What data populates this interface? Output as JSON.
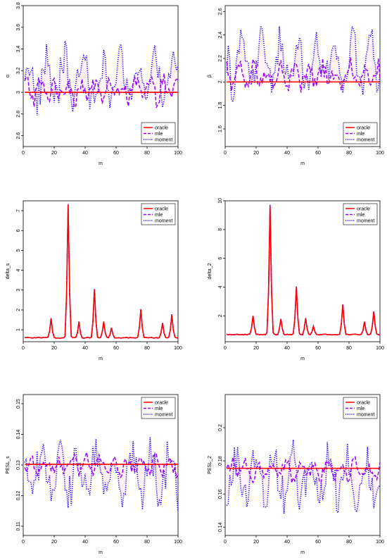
{
  "legend_labels": [
    "oracle",
    "mle",
    "moment"
  ],
  "colors": {
    "oracle": "#ff0000",
    "mle": "#9b00ff",
    "moment": "#2200ff",
    "band": "#ffd9ee"
  },
  "chart_data": [
    {
      "type": "line",
      "xlabel": "m",
      "ylabel": "α",
      "xlim": [
        0,
        100
      ],
      "ylim": [
        2.5,
        3.8
      ],
      "xticks": [
        0,
        20,
        40,
        60,
        80,
        100
      ],
      "yticks": [
        2.6,
        2.8,
        3.0,
        3.2,
        3.4,
        3.6,
        3.8
      ],
      "oracle": 3.0,
      "mle_center": 3.02,
      "mle_amp": 0.15,
      "mom_center": 3.12,
      "mom_amp": 0.3,
      "legend_position": "bottom-right"
    },
    {
      "type": "line",
      "xlabel": "m",
      "ylabel": "β",
      "xlim": [
        0,
        100
      ],
      "ylim": [
        1.45,
        2.65
      ],
      "xticks": [
        0,
        20,
        40,
        60,
        80,
        100
      ],
      "yticks": [
        1.6,
        1.8,
        2.0,
        2.2,
        2.4,
        2.6
      ],
      "oracle": 2.0,
      "mle_center": 2.05,
      "mle_amp": 0.15,
      "mom_center": 2.15,
      "mom_amp": 0.28,
      "legend_position": "bottom-right"
    },
    {
      "type": "line",
      "xlabel": "m",
      "ylabel": "delta_s",
      "xlim": [
        0,
        100
      ],
      "ylim": [
        0.4,
        7.5
      ],
      "xticks": [
        0,
        20,
        40,
        60,
        80,
        100
      ],
      "yticks": [
        1,
        2,
        3,
        4,
        5,
        6,
        7
      ],
      "base": 0.6,
      "spikes": [
        [
          18,
          1.55
        ],
        [
          29,
          7.3
        ],
        [
          36,
          1.4
        ],
        [
          46,
          3.05
        ],
        [
          52,
          1.4
        ],
        [
          57,
          1.1
        ],
        [
          76,
          2.05
        ],
        [
          90,
          1.35
        ],
        [
          96,
          1.75
        ]
      ],
      "legend_position": "top-right"
    },
    {
      "type": "line",
      "xlabel": "m",
      "ylabel": "delta_2",
      "xlim": [
        0,
        100
      ],
      "ylim": [
        0.2,
        10
      ],
      "xticks": [
        0,
        20,
        40,
        60,
        80,
        100
      ],
      "yticks": [
        2,
        4,
        6,
        8,
        10
      ],
      "base": 0.7,
      "spikes": [
        [
          18,
          2.0
        ],
        [
          29,
          9.6
        ],
        [
          36,
          1.8
        ],
        [
          46,
          4.0
        ],
        [
          52,
          1.8
        ],
        [
          57,
          1.3
        ],
        [
          76,
          2.8
        ],
        [
          90,
          1.6
        ],
        [
          96,
          2.3
        ]
      ],
      "legend_position": "top-right"
    },
    {
      "type": "line",
      "xlabel": "m",
      "ylabel": "PESL_s",
      "xlim": [
        0,
        100
      ],
      "ylim": [
        0.107,
        0.153
      ],
      "xticks": [
        0,
        20,
        40,
        60,
        80,
        100
      ],
      "yticks": [
        0.11,
        0.12,
        0.13,
        0.14,
        0.15
      ],
      "oracle": 0.1302,
      "mle_center": 0.1298,
      "mle_amp": 0.004,
      "mom_center": 0.127,
      "mom_amp": 0.011,
      "legend_position": "top-right"
    },
    {
      "type": "line",
      "xlabel": "m",
      "ylabel": "PESL_2",
      "xlim": [
        0,
        100
      ],
      "ylim": [
        0.135,
        0.22
      ],
      "xticks": [
        0,
        20,
        40,
        60,
        80,
        100
      ],
      "yticks": [
        0.14,
        0.16,
        0.18,
        0.2
      ],
      "oracle": 0.1755,
      "mle_center": 0.1745,
      "mle_amp": 0.008,
      "mom_center": 0.171,
      "mom_amp": 0.02,
      "legend_position": "top-right"
    }
  ]
}
